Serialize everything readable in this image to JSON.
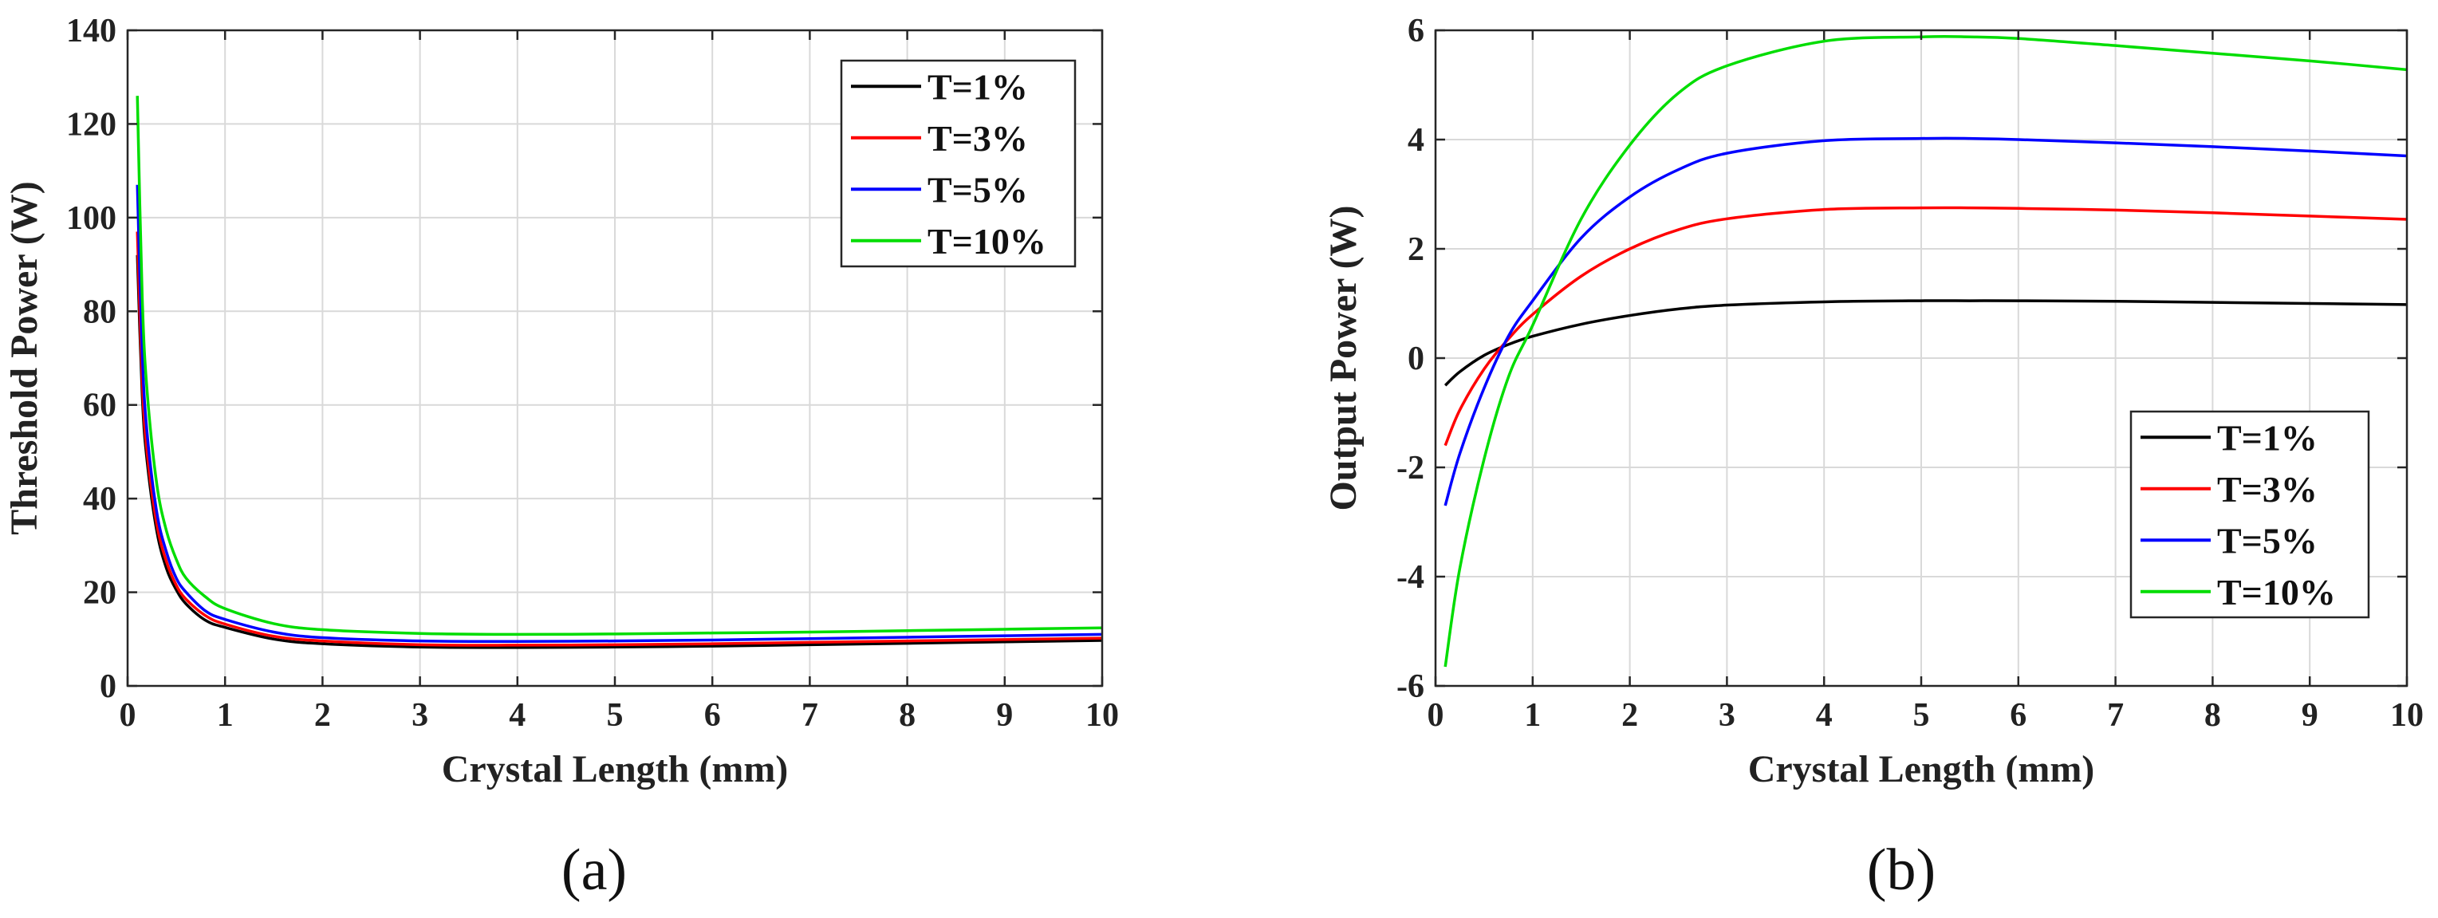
{
  "chart_data": [
    {
      "type": "line",
      "panel_label": "(a)",
      "title": "",
      "xlabel": "Crystal Length (mm)",
      "ylabel": "Threshold Power (W)",
      "xlim": [
        0,
        10
      ],
      "ylim": [
        0,
        140
      ],
      "xticks": [
        0,
        1,
        2,
        3,
        4,
        5,
        6,
        7,
        8,
        9,
        10
      ],
      "yticks": [
        0,
        20,
        40,
        60,
        80,
        100,
        120,
        140
      ],
      "grid": true,
      "legend_position": "top-right",
      "x": [
        0.1,
        0.15,
        0.2,
        0.3,
        0.4,
        0.5,
        0.6,
        0.8,
        1,
        1.5,
        2,
        3,
        4,
        5,
        6,
        7,
        8,
        9,
        10
      ],
      "series": [
        {
          "name": "T=1%",
          "color": "#000000",
          "values": [
            92,
            62,
            48,
            33,
            25,
            20.5,
            17.5,
            14,
            12.5,
            10,
            9,
            8.3,
            8.2,
            8.3,
            8.5,
            8.8,
            9.1,
            9.4,
            9.7
          ]
        },
        {
          "name": "T=3%",
          "color": "#ff0000",
          "values": [
            97,
            65,
            50,
            34.5,
            26.5,
            21.5,
            18.5,
            15,
            13.2,
            10.6,
            9.6,
            8.8,
            8.7,
            8.8,
            9,
            9.3,
            9.6,
            9.9,
            10.2
          ]
        },
        {
          "name": "T=5%",
          "color": "#0000ff",
          "values": [
            107,
            71,
            54,
            37,
            28.5,
            23,
            20,
            16,
            14.2,
            11.5,
            10.3,
            9.6,
            9.5,
            9.6,
            9.8,
            10.1,
            10.4,
            10.7,
            11
          ]
        },
        {
          "name": "T=10%",
          "color": "#00dd00",
          "values": [
            126,
            83,
            63,
            43,
            33,
            27,
            23,
            19,
            16.5,
            13.3,
            12,
            11.2,
            11,
            11.1,
            11.3,
            11.5,
            11.8,
            12.1,
            12.4
          ]
        }
      ]
    },
    {
      "type": "line",
      "panel_label": "(b)",
      "title": "",
      "xlabel": "Crystal Length (mm)",
      "ylabel": "Output Power (W)",
      "xlim": [
        0,
        10
      ],
      "ylim": [
        -6,
        6
      ],
      "xticks": [
        0,
        1,
        2,
        3,
        4,
        5,
        6,
        7,
        8,
        9,
        10
      ],
      "yticks": [
        -6,
        -4,
        -2,
        0,
        2,
        4,
        6
      ],
      "grid": true,
      "legend_position": "bottom-right",
      "x": [
        0.1,
        0.25,
        0.5,
        0.75,
        1,
        1.5,
        2,
        2.5,
        3,
        4,
        5,
        5.5,
        6,
        7,
        8,
        9,
        10
      ],
      "series": [
        {
          "name": "T=1%",
          "color": "#000000",
          "values": [
            -0.5,
            -0.25,
            0.05,
            0.25,
            0.4,
            0.62,
            0.78,
            0.9,
            0.97,
            1.03,
            1.05,
            1.05,
            1.05,
            1.04,
            1.02,
            1.0,
            0.98
          ]
        },
        {
          "name": "T=3%",
          "color": "#ff0000",
          "values": [
            -1.6,
            -0.95,
            -0.2,
            0.35,
            0.8,
            1.5,
            2.0,
            2.35,
            2.55,
            2.72,
            2.75,
            2.75,
            2.74,
            2.71,
            2.66,
            2.6,
            2.54
          ]
        },
        {
          "name": "T=5%",
          "color": "#0000ff",
          "values": [
            -2.7,
            -1.75,
            -0.55,
            0.4,
            1.05,
            2.2,
            2.95,
            3.45,
            3.75,
            3.98,
            4.02,
            4.02,
            4.0,
            3.94,
            3.87,
            3.79,
            3.7
          ]
        },
        {
          "name": "T=10%",
          "color": "#00dd00",
          "values": [
            -5.65,
            -3.85,
            -1.85,
            -0.35,
            0.6,
            2.55,
            3.9,
            4.85,
            5.35,
            5.8,
            5.88,
            5.88,
            5.85,
            5.72,
            5.58,
            5.44,
            5.28
          ]
        }
      ]
    }
  ]
}
